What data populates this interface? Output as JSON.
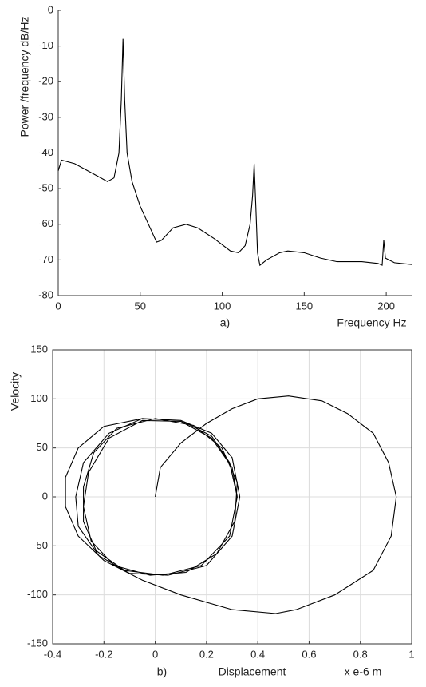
{
  "chart_data": [
    {
      "type": "line",
      "ylabel": "Power /frequency dB/Hz",
      "xlabel": "Frequency Hz",
      "annotation": "a)",
      "color": "#000000",
      "grid": false,
      "xlim": [
        0,
        216
      ],
      "ylim": [
        -80,
        0
      ],
      "xticks": [
        0,
        50,
        100,
        150,
        200
      ],
      "yticks": [
        0,
        -10,
        -20,
        -30,
        -40,
        -50,
        -60,
        -70,
        -80
      ],
      "x": [
        0,
        2,
        10,
        20,
        30,
        34,
        37,
        38.5,
        39.5,
        40.5,
        42,
        45,
        50,
        55,
        60,
        63,
        70,
        78,
        85,
        95,
        105,
        110,
        114,
        117,
        118.5,
        119.5,
        120.5,
        121.5,
        123,
        127,
        135,
        140,
        150,
        160,
        170,
        185,
        195,
        197.5,
        198.5,
        199.5,
        205,
        216
      ],
      "values": [
        -45,
        -42,
        -43,
        -45.5,
        -48,
        -47,
        -40,
        -25,
        -8,
        -25,
        -40,
        -48,
        -55,
        -60,
        -65,
        -64.5,
        -61,
        -60,
        -61,
        -64,
        -67.5,
        -68,
        -66,
        -60,
        -52,
        -43,
        -55,
        -68,
        -71.5,
        -70,
        -68,
        -67.5,
        -68,
        -69.5,
        -70.5,
        -70.5,
        -71,
        -71.5,
        -64.5,
        -69.5,
        -70.8,
        -71.3
      ]
    },
    {
      "type": "line",
      "ylabel": "Velocity",
      "xlabel": "Displacement",
      "x_unit_label": "x e-6 m",
      "annotation": "b)",
      "color": "#000000",
      "grid": true,
      "xlim": [
        -0.4,
        1
      ],
      "ylim": [
        -150,
        150
      ],
      "xticks": [
        -0.4,
        -0.2,
        0,
        0.2,
        0.4,
        0.6,
        0.8,
        1
      ],
      "yticks": [
        150,
        100,
        50,
        0,
        -50,
        -100,
        -150
      ],
      "x": [
        0,
        0.02,
        0.1,
        0.2,
        0.3,
        0.4,
        0.52,
        0.65,
        0.75,
        0.85,
        0.91,
        0.94,
        0.92,
        0.85,
        0.7,
        0.55,
        0.47,
        0.3,
        0.1,
        -0.05,
        -0.2,
        -0.3,
        -0.35,
        -0.35,
        -0.3,
        -0.2,
        -0.05,
        0.1,
        0.22,
        0.3,
        0.33,
        0.3,
        0.2,
        0.05,
        -0.1,
        -0.22,
        -0.3,
        -0.31,
        -0.28,
        -0.18,
        -0.05,
        0.1,
        0.22,
        0.29,
        0.32,
        0.29,
        0.18,
        0.03,
        -0.12,
        -0.23,
        -0.28,
        -0.28,
        -0.24,
        -0.15,
        0,
        0.15,
        0.26,
        0.32,
        0.31,
        0.24,
        0.12,
        -0.02,
        -0.16,
        -0.25,
        -0.28,
        -0.26,
        -0.18,
        -0.05,
        0.1,
        0.22,
        0.3,
        0.32
      ],
      "values": [
        0,
        30,
        55,
        75,
        90,
        100,
        103,
        98,
        85,
        65,
        35,
        0,
        -40,
        -75,
        -100,
        -115,
        -119,
        -115,
        -100,
        -85,
        -65,
        -40,
        -10,
        20,
        50,
        72,
        80,
        78,
        65,
        40,
        0,
        -40,
        -70,
        -80,
        -78,
        -60,
        -30,
        0,
        35,
        65,
        80,
        78,
        62,
        35,
        0,
        -40,
        -70,
        -80,
        -75,
        -55,
        -25,
        10,
        45,
        70,
        80,
        73,
        50,
        15,
        -25,
        -58,
        -77,
        -80,
        -70,
        -45,
        -10,
        25,
        60,
        78,
        77,
        60,
        30,
        0
      ]
    }
  ]
}
